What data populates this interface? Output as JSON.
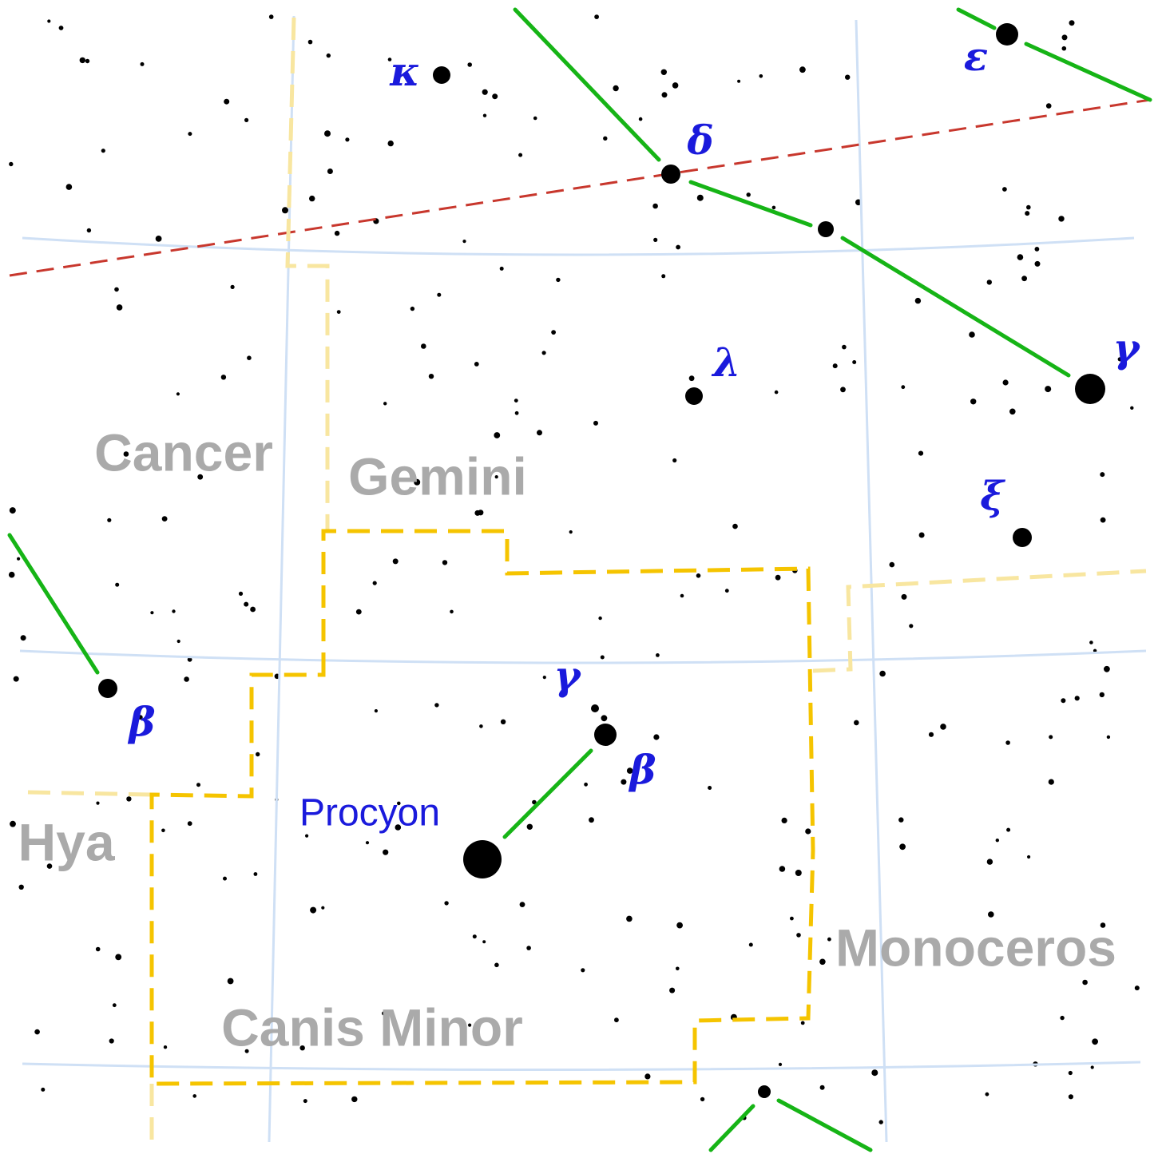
{
  "constellation_labels": [
    "Cancer",
    "Gemini",
    "Hya",
    "Monoceros",
    "Canis Minor"
  ],
  "star_labels": [
    "κ",
    "δ",
    "ε",
    "γ",
    "λ",
    "ξ",
    "β",
    "γ",
    "β",
    "Procyon"
  ]
}
